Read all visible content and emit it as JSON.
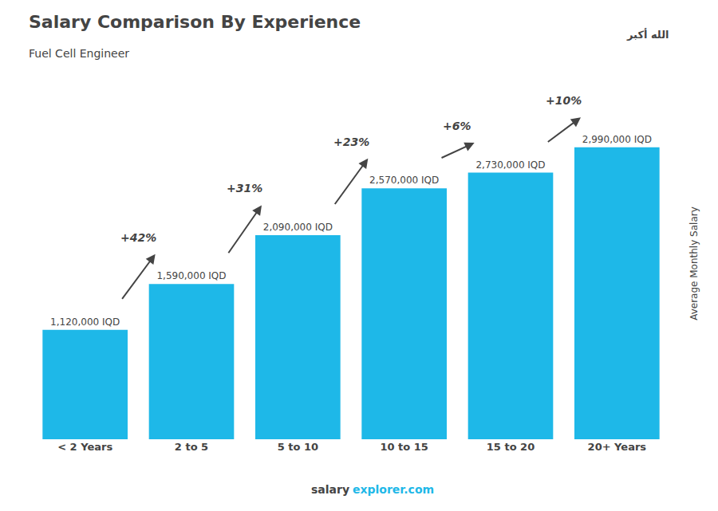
{
  "chart_data": {
    "type": "bar",
    "title": "Salary Comparison By Experience",
    "subtitle": "Fuel Cell Engineer",
    "ylabel": "Average Monthly Salary",
    "categories": [
      "< 2 Years",
      "2 to 5",
      "5 to 10",
      "10 to 15",
      "15 to 20",
      "20+ Years"
    ],
    "values": [
      1120000,
      1590000,
      2090000,
      2570000,
      2730000,
      2990000
    ],
    "value_labels": [
      "1,120,000 IQD",
      "1,590,000 IQD",
      "2,090,000 IQD",
      "2,570,000 IQD",
      "2,730,000 IQD",
      "2,990,000 IQD"
    ],
    "data_labels": true,
    "color": "#1EB8E8",
    "ylim": [
      0,
      3600000
    ],
    "grid": false,
    "tick_labels": "x",
    "annotations": [
      "+42%",
      "+31%",
      "+23%",
      "+6%",
      "+10%",
      "salary",
      "explorer.com",
      "الله أكبر"
    ]
  }
}
